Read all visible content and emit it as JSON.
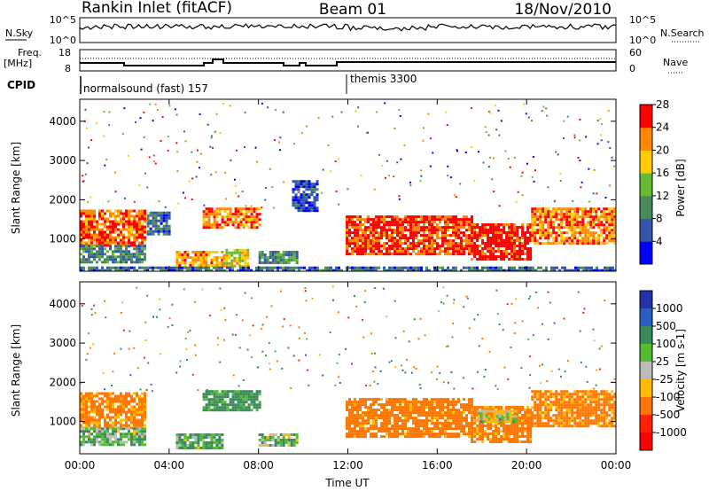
{
  "header": {
    "station": "Rankin Inlet (fitACF)",
    "beam": "Beam 01",
    "date": "18/Nov/2010"
  },
  "top_panels": {
    "nsky_label": "N.Sky",
    "nsky_ticks": [
      "10^5",
      "10^0"
    ],
    "nsearch_label": "N.Search",
    "nsearch_ticks": [
      "10^5",
      "10^0"
    ],
    "freq_label": "Freq.",
    "freq_unit": "[MHz]",
    "freq_ticks": [
      "18",
      "8"
    ],
    "nave_label": "Nave",
    "nave_ticks": [
      "60",
      "0"
    ],
    "cpid_label": "CPID",
    "cpid_programs": [
      {
        "name": "normalsound (fast) 157",
        "start_hour": 0.0
      },
      {
        "name": "themis 3300",
        "start_hour": 11.95
      }
    ]
  },
  "chart_data": [
    {
      "type": "heatmap",
      "title": "",
      "xlabel": "",
      "ylabel": "Slant Range [km]",
      "xlim": [
        0,
        24
      ],
      "ylim": [
        180,
        4560
      ],
      "x_tick_labels": [
        "00:00",
        "04:00",
        "08:00",
        "12:00",
        "16:00",
        "20:00",
        "00:00"
      ],
      "y_ticks": [
        1000,
        2000,
        3000,
        4000
      ],
      "colorbar": {
        "label": "Power [dB]",
        "tick_labels": [
          "4",
          "8",
          "12",
          "16",
          "20",
          "24",
          "28"
        ],
        "range": [
          0,
          30
        ],
        "colors": [
          "#0000ff",
          "#3355aa",
          "#4a8a5a",
          "#66bb33",
          "#ffcc00",
          "#ff8800",
          "#ff0000"
        ]
      },
      "regions": [
        {
          "t": [
            0.0,
            2.9
          ],
          "r": [
            850,
            1750
          ],
          "value": 25
        },
        {
          "t": [
            0.0,
            2.9
          ],
          "r": [
            400,
            850
          ],
          "value": 10
        },
        {
          "t": [
            3.0,
            4.0
          ],
          "r": [
            1100,
            1700
          ],
          "value": 8
        },
        {
          "t": [
            4.3,
            6.4
          ],
          "r": [
            350,
            700
          ],
          "value": 22
        },
        {
          "t": [
            6.4,
            7.5
          ],
          "r": [
            300,
            750
          ],
          "value": 18
        },
        {
          "t": [
            5.5,
            8.0
          ],
          "r": [
            1300,
            1800
          ],
          "value": 24
        },
        {
          "t": [
            8.0,
            9.7
          ],
          "r": [
            400,
            700
          ],
          "value": 10
        },
        {
          "t": [
            9.5,
            10.6
          ],
          "r": [
            1700,
            2500
          ],
          "value": 6
        },
        {
          "t": [
            11.9,
            17.5
          ],
          "r": [
            600,
            1600
          ],
          "value": 27
        },
        {
          "t": [
            17.5,
            20.2
          ],
          "r": [
            500,
            1400
          ],
          "value": 29
        },
        {
          "t": [
            20.2,
            24.0
          ],
          "r": [
            900,
            1800
          ],
          "value": 24
        },
        {
          "t": [
            0.0,
            24.0
          ],
          "r": [
            200,
            300
          ],
          "value": 8
        }
      ]
    },
    {
      "type": "heatmap",
      "title": "",
      "xlabel": "Time UT",
      "ylabel": "Slant Range [km]",
      "xlim": [
        0,
        24
      ],
      "ylim": [
        180,
        4560
      ],
      "x_tick_labels": [
        "00:00",
        "04:00",
        "08:00",
        "12:00",
        "16:00",
        "20:00",
        "00:00"
      ],
      "y_ticks": [
        1000,
        2000,
        3000,
        4000
      ],
      "colorbar": {
        "label": "Velocity [m s-1]",
        "tick_labels": [
          "1000",
          "500",
          "100",
          "25",
          "-25",
          "-100",
          "-500",
          "-1000"
        ],
        "colors": [
          "#2233aa",
          "#2a5fc0",
          "#3a8a5a",
          "#55bb33",
          "#bbbbbb",
          "#ffbb00",
          "#ff7700",
          "#ff2200",
          "#ff0000"
        ]
      },
      "regions": [
        {
          "t": [
            0.0,
            2.9
          ],
          "r": [
            850,
            1750
          ],
          "value": -150
        },
        {
          "t": [
            0.0,
            2.9
          ],
          "r": [
            400,
            850
          ],
          "value": 80
        },
        {
          "t": [
            4.3,
            6.4
          ],
          "r": [
            350,
            700
          ],
          "value": 80
        },
        {
          "t": [
            5.5,
            8.0
          ],
          "r": [
            1300,
            1800
          ],
          "value": 150
        },
        {
          "t": [
            8.0,
            9.7
          ],
          "r": [
            400,
            700
          ],
          "value": 60
        },
        {
          "t": [
            11.9,
            17.5
          ],
          "r": [
            600,
            1600
          ],
          "value": -200
        },
        {
          "t": [
            17.5,
            20.2
          ],
          "r": [
            500,
            1400
          ],
          "value": -180
        },
        {
          "t": [
            17.8,
            19.5
          ],
          "r": [
            1000,
            1300
          ],
          "value": 0
        },
        {
          "t": [
            20.2,
            24.0
          ],
          "r": [
            900,
            1800
          ],
          "value": -170
        }
      ]
    }
  ]
}
